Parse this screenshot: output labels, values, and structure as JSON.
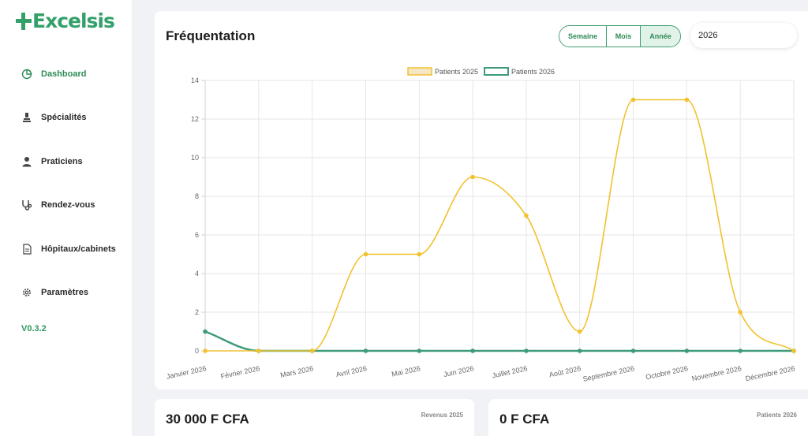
{
  "app": {
    "logo": "Excelsis",
    "version": "V0.3.2"
  },
  "sidebar": {
    "items": [
      {
        "label": "Dashboard",
        "icon": "pie-chart-icon",
        "active": true
      },
      {
        "label": "Spécialités",
        "icon": "microscope-icon"
      },
      {
        "label": "Praticiens",
        "icon": "doctor-icon"
      },
      {
        "label": "Rendez-vous",
        "icon": "stethoscope-icon"
      },
      {
        "label": "Hôpitaux/cabinets",
        "icon": "document-icon"
      },
      {
        "label": "Paramètres",
        "icon": "gear-icon"
      }
    ]
  },
  "main": {
    "title": "Fréquentation",
    "period_buttons": [
      "Semaine",
      "Mois",
      "Année"
    ],
    "selected_period": "Année",
    "year_value": "2026"
  },
  "colors": {
    "accent": "#2e8b57",
    "series_2025": "#f2c12e",
    "series_2026": "#3e9a78"
  },
  "chart_data": {
    "type": "line",
    "categories": [
      "Janvier 2026",
      "Février 2026",
      "Mars 2026",
      "Avril 2026",
      "Mai 2026",
      "Juin 2026",
      "Juillet 2026",
      "Août 2026",
      "Septembre 2026",
      "Octobre 2026",
      "Novembre 2026",
      "Décembre 2026"
    ],
    "series": [
      {
        "name": "Patients  2025",
        "values": [
          0,
          0,
          0,
          5,
          5,
          9,
          7,
          1,
          13,
          13,
          2,
          0
        ]
      },
      {
        "name": "Patients  2026",
        "values": [
          1,
          0,
          0,
          0,
          0,
          0,
          0,
          0,
          0,
          0,
          0,
          0
        ]
      }
    ],
    "ylim": [
      0,
      14
    ],
    "yticks": [
      "0",
      "2",
      "4",
      "6",
      "8",
      "10",
      "12",
      "14"
    ],
    "legend": "top",
    "grid": true
  },
  "stats": [
    {
      "value": "30 000 F CFA",
      "label": "Revenus 2025"
    },
    {
      "value": "0 F CFA",
      "label": "Patients 2026"
    }
  ]
}
